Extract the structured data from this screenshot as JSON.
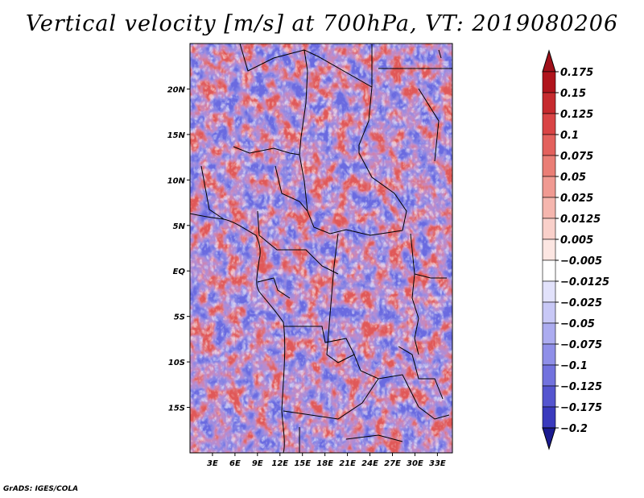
{
  "title": "Vertical velocity [m/s] at 700hPa, VT: 2019080206",
  "credit": "GrADS: IGES/COLA",
  "map": {
    "lon_range": [
      0,
      35
    ],
    "lat_range": [
      -20,
      25
    ],
    "lat_ticks": [
      {
        "value": 20,
        "label": "20N"
      },
      {
        "value": 15,
        "label": "15N"
      },
      {
        "value": 10,
        "label": "10N"
      },
      {
        "value": 5,
        "label": "5N"
      },
      {
        "value": 0,
        "label": "EQ"
      },
      {
        "value": -5,
        "label": "5S"
      },
      {
        "value": -10,
        "label": "10S"
      },
      {
        "value": -15,
        "label": "15S"
      }
    ],
    "lon_ticks": [
      {
        "value": 3,
        "label": "3E"
      },
      {
        "value": 6,
        "label": "6E"
      },
      {
        "value": 9,
        "label": "9E"
      },
      {
        "value": 12,
        "label": "12E"
      },
      {
        "value": 15,
        "label": "15E"
      },
      {
        "value": 18,
        "label": "18E"
      },
      {
        "value": 21,
        "label": "21E"
      },
      {
        "value": 24,
        "label": "24E"
      },
      {
        "value": 27,
        "label": "27E"
      },
      {
        "value": 30,
        "label": "30E"
      },
      {
        "value": 33,
        "label": "33E"
      }
    ]
  },
  "colorbar": {
    "levels": [
      {
        "label": "0.175",
        "color": "#b0141c"
      },
      {
        "label": "0.15",
        "color": "#c62a2e"
      },
      {
        "label": "0.125",
        "color": "#d94445"
      },
      {
        "label": "0.1",
        "color": "#e3615d"
      },
      {
        "label": "0.075",
        "color": "#ea7e76"
      },
      {
        "label": "0.05",
        "color": "#f09a92"
      },
      {
        "label": "0.025",
        "color": "#f5b6ae"
      },
      {
        "label": "0.0125",
        "color": "#f9d0ca"
      },
      {
        "label": "0.005",
        "color": "#fce6e2"
      },
      {
        "label": "−0.005",
        "color": "#ffffff"
      },
      {
        "label": "−0.0125",
        "color": "#e2e2fb"
      },
      {
        "label": "−0.025",
        "color": "#c8c8f6"
      },
      {
        "label": "−0.05",
        "color": "#acacf0"
      },
      {
        "label": "−0.075",
        "color": "#8f8fe8"
      },
      {
        "label": "−0.1",
        "color": "#7272de"
      },
      {
        "label": "−0.125",
        "color": "#5555cf"
      },
      {
        "label": "−0.175",
        "color": "#3a3abd"
      },
      {
        "label": "−0.2",
        "color": "#2222a6"
      }
    ],
    "top_color": "#a0101a",
    "bottom_color": "#1a1a90"
  }
}
